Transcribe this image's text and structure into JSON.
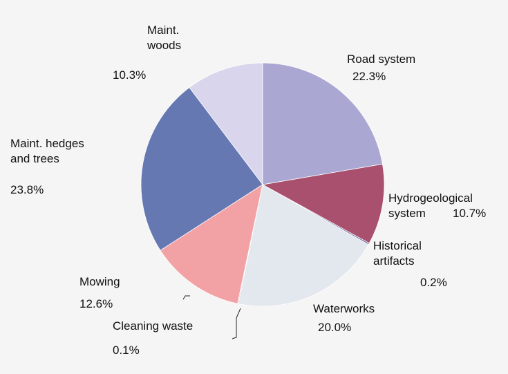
{
  "chart_data": {
    "type": "pie",
    "categories": [
      "Road system",
      "Hydrogeological\nsystem",
      "Historical\nartifacts",
      "Waterworks",
      "Cleaning waste",
      "Mowing",
      "Maint. hedges\nand trees",
      "Maint.\nwoods"
    ],
    "values": [
      22.3,
      10.7,
      0.2,
      20.0,
      0.1,
      12.6,
      23.8,
      10.3
    ],
    "value_labels": [
      "22.3%",
      "10.7%",
      "0.2%",
      "20.0%",
      "0.1%",
      "12.6%",
      "23.8%",
      "10.3%"
    ],
    "colors": [
      "#aba7d3",
      "#a8506e",
      "#6f6a9e",
      "#e3e7ee",
      "#b0405a",
      "#f2a2a4",
      "#6678b2",
      "#d9d5ec"
    ]
  }
}
